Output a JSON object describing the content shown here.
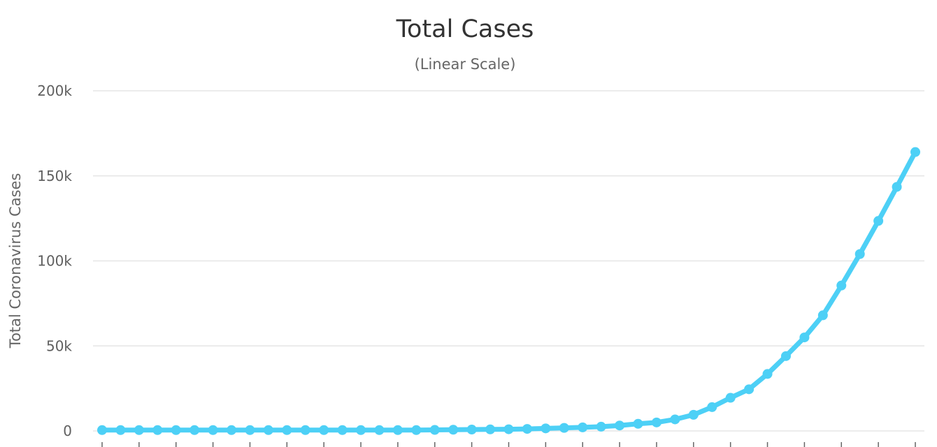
{
  "chart_data": {
    "type": "line",
    "title": "Total Cases",
    "subtitle": "(Linear Scale)",
    "ylabel": "Total Coronavirus Cases",
    "xlabel": "",
    "ylim": [
      0,
      200000
    ],
    "yticks": [
      0,
      50000,
      100000,
      150000,
      200000
    ],
    "ytick_labels": [
      "0",
      "50k",
      "100k",
      "150k",
      "200k"
    ],
    "grid": true,
    "legend": "none",
    "series": [
      {
        "color": "#4dd0f6",
        "values": [
          500,
          500,
          500,
          500,
          500,
          500,
          500,
          500,
          500,
          500,
          500,
          500,
          500,
          500,
          500,
          500,
          500,
          500,
          600,
          700,
          800,
          900,
          1000,
          1200,
          1500,
          1800,
          2100,
          2500,
          3200,
          4200,
          5000,
          6800,
          9500,
          14000,
          19500,
          24500,
          33500,
          44000,
          55000,
          68000,
          85500,
          104000,
          123500,
          143500,
          164000
        ]
      }
    ]
  }
}
